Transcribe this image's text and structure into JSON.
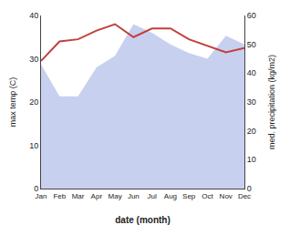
{
  "chart_data": {
    "type": "line",
    "categories": [
      "Jan",
      "Feb",
      "Mar",
      "Apr",
      "May",
      "Jun",
      "Jul",
      "Aug",
      "Sep",
      "Oct",
      "Nov",
      "Dec"
    ],
    "series": [
      {
        "type": "area",
        "color": "#c8d0f0",
        "axis": "y2",
        "values": [
          43,
          32,
          32,
          42,
          46,
          57,
          54,
          50,
          47,
          45,
          53,
          50
        ]
      },
      {
        "type": "line",
        "color": "#c0413a",
        "values": [
          29.5,
          34.0,
          34.5,
          36.5,
          38.0,
          35.0,
          37.0,
          37.0,
          34.5,
          33.0,
          31.5,
          32.5
        ]
      }
    ],
    "xlabel": "date (month)",
    "ylabel": "max temp (C)",
    "y2label": "med. precipitation (kg/m2)",
    "ylim": [
      0,
      40
    ],
    "yticks": [
      0,
      10,
      20,
      30,
      40
    ],
    "y2lim": [
      0,
      60
    ],
    "y2ticks": [
      0,
      10,
      20,
      30,
      40,
      50,
      60
    ],
    "grid": false
  }
}
